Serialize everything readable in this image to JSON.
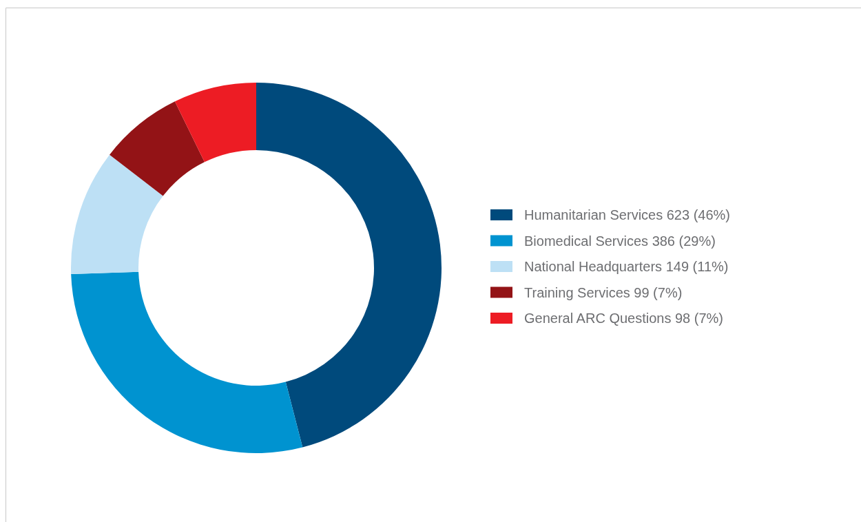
{
  "chart_data": {
    "type": "donut",
    "categories": [
      "Humanitarian Services 623 (46%)",
      "Biomedical Services 386 (29%)",
      "National Headquarters 149 (11%)",
      "Training Services 99 (7%)",
      "General ARC Questions 98 (7%)"
    ],
    "values": [
      623,
      386,
      149,
      99,
      98
    ],
    "colors": [
      "#004a7c",
      "#0093d0",
      "#bde0f5",
      "#931316",
      "#ed1c24"
    ],
    "legend": "right"
  }
}
